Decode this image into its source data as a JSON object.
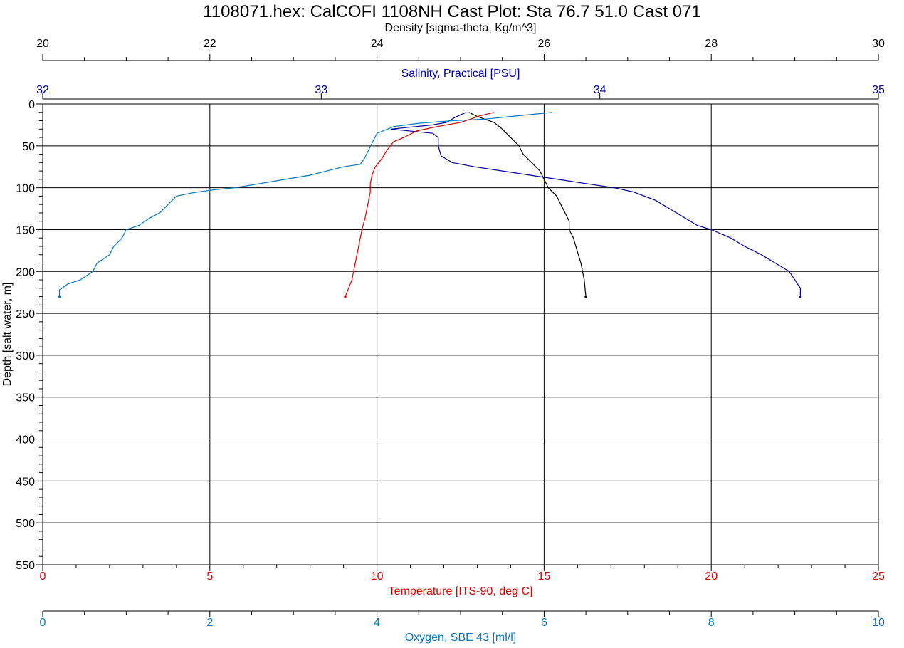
{
  "chart_data": {
    "type": "line",
    "title": "1108071.hex: CalCOFI 1108NH Cast Plot: Sta 76.7 51.0 Cast 071",
    "y_axis": {
      "label": "Depth [salt water, m]",
      "range": [
        0,
        550
      ],
      "ticks": [
        "0",
        "50",
        "100",
        "150",
        "200",
        "250",
        "300",
        "350",
        "400",
        "450",
        "500",
        "550"
      ],
      "inverted": true
    },
    "grid": true,
    "x_axes": [
      {
        "id": "density",
        "label": "Density [sigma-theta, Kg/m^3]",
        "range": [
          20,
          30
        ],
        "ticks": [
          "20",
          "22",
          "24",
          "26",
          "28",
          "30"
        ],
        "position": "top",
        "color": "#000000"
      },
      {
        "id": "salinity",
        "label": "Salinity, Practical [PSU]",
        "range": [
          32,
          35
        ],
        "ticks": [
          "32",
          "33",
          "34",
          "35"
        ],
        "position": "top",
        "color": "#0000a0"
      },
      {
        "id": "temperature",
        "label": "Temperature [ITS-90, deg C]",
        "range": [
          0,
          25
        ],
        "ticks": [
          "0",
          "5",
          "10",
          "15",
          "20",
          "25"
        ],
        "position": "bottom",
        "color": "#e00000"
      },
      {
        "id": "oxygen",
        "label": "Oxygen, SBE 43 [ml/l]",
        "range": [
          0,
          10
        ],
        "ticks": [
          "0",
          "2",
          "4",
          "6",
          "8",
          "10"
        ],
        "position": "bottom",
        "color": "#0078c8"
      }
    ],
    "series": [
      {
        "axis": "density",
        "color": "#000000",
        "points": [
          [
            25.1,
            10
          ],
          [
            25.2,
            15
          ],
          [
            25.4,
            22
          ],
          [
            25.5,
            30
          ],
          [
            25.6,
            40
          ],
          [
            25.7,
            50
          ],
          [
            25.75,
            60
          ],
          [
            25.85,
            70
          ],
          [
            25.95,
            80
          ],
          [
            26.0,
            90
          ],
          [
            26.05,
            100
          ],
          [
            26.15,
            110
          ],
          [
            26.2,
            120
          ],
          [
            26.25,
            130
          ],
          [
            26.3,
            140
          ],
          [
            26.3,
            150
          ],
          [
            26.35,
            160
          ],
          [
            26.38,
            170
          ],
          [
            26.41,
            180
          ],
          [
            26.44,
            190
          ],
          [
            26.46,
            200
          ],
          [
            26.48,
            210
          ],
          [
            26.49,
            220
          ],
          [
            26.5,
            230
          ]
        ]
      },
      {
        "axis": "salinity",
        "color": "#0000a0",
        "points": [
          [
            33.52,
            10
          ],
          [
            33.5,
            13
          ],
          [
            33.48,
            16
          ],
          [
            33.45,
            22
          ],
          [
            33.4,
            25
          ],
          [
            33.25,
            30
          ],
          [
            33.4,
            35
          ],
          [
            33.42,
            40
          ],
          [
            33.42,
            50
          ],
          [
            33.43,
            62
          ],
          [
            33.47,
            70
          ],
          [
            33.55,
            75
          ],
          [
            33.65,
            80
          ],
          [
            33.75,
            85
          ],
          [
            33.85,
            90
          ],
          [
            33.95,
            95
          ],
          [
            34.05,
            100
          ],
          [
            34.12,
            105
          ],
          [
            34.2,
            115
          ],
          [
            34.25,
            125
          ],
          [
            34.3,
            135
          ],
          [
            34.35,
            145
          ],
          [
            34.4,
            150
          ],
          [
            34.47,
            160
          ],
          [
            34.52,
            170
          ],
          [
            34.58,
            180
          ],
          [
            34.63,
            190
          ],
          [
            34.68,
            200
          ],
          [
            34.7,
            210
          ],
          [
            34.72,
            220
          ],
          [
            34.72,
            230
          ]
        ]
      },
      {
        "axis": "temperature",
        "color": "#e00000",
        "points": [
          [
            13.5,
            10
          ],
          [
            13.0,
            15
          ],
          [
            12.8,
            18
          ],
          [
            12.5,
            22
          ],
          [
            11.8,
            27
          ],
          [
            11.2,
            32
          ],
          [
            10.8,
            40
          ],
          [
            10.5,
            45
          ],
          [
            10.3,
            55
          ],
          [
            10.15,
            65
          ],
          [
            9.95,
            75
          ],
          [
            9.85,
            85
          ],
          [
            9.8,
            95
          ],
          [
            9.8,
            105
          ],
          [
            9.75,
            115
          ],
          [
            9.7,
            125
          ],
          [
            9.65,
            135
          ],
          [
            9.55,
            150
          ],
          [
            9.45,
            170
          ],
          [
            9.35,
            190
          ],
          [
            9.25,
            210
          ],
          [
            9.15,
            220
          ],
          [
            9.05,
            230
          ]
        ]
      },
      {
        "axis": "oxygen",
        "color": "#0078c8",
        "points": [
          [
            6.1,
            10
          ],
          [
            5.9,
            12
          ],
          [
            5.6,
            15
          ],
          [
            5.3,
            18
          ],
          [
            4.9,
            20
          ],
          [
            4.5,
            23
          ],
          [
            4.2,
            27
          ],
          [
            4.0,
            35
          ],
          [
            3.95,
            45
          ],
          [
            3.9,
            55
          ],
          [
            3.85,
            65
          ],
          [
            3.8,
            72
          ],
          [
            3.6,
            75
          ],
          [
            3.4,
            80
          ],
          [
            3.2,
            85
          ],
          [
            2.9,
            90
          ],
          [
            2.6,
            95
          ],
          [
            2.3,
            100
          ],
          [
            2.0,
            103
          ],
          [
            1.8,
            106
          ],
          [
            1.6,
            110
          ],
          [
            1.5,
            120
          ],
          [
            1.4,
            130
          ],
          [
            1.3,
            135
          ],
          [
            1.15,
            145
          ],
          [
            1.0,
            150
          ],
          [
            0.95,
            160
          ],
          [
            0.85,
            170
          ],
          [
            0.8,
            180
          ],
          [
            0.65,
            190
          ],
          [
            0.6,
            200
          ],
          [
            0.45,
            210
          ],
          [
            0.3,
            215
          ],
          [
            0.2,
            222
          ],
          [
            0.2,
            230
          ]
        ]
      }
    ]
  }
}
